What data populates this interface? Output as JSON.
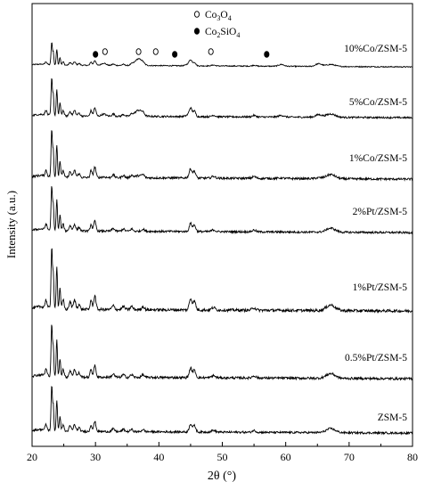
{
  "chart_data": {
    "type": "line",
    "xlabel": "2θ (°)",
    "ylabel": "Intensity (a.u.)",
    "xlim": [
      20,
      80
    ],
    "xticks": [
      20,
      30,
      40,
      50,
      60,
      70,
      80
    ],
    "y_tick_labels": "none",
    "grid": false,
    "legend_position": "top-center",
    "legend": [
      {
        "marker": "open-circle",
        "label_base": "Co",
        "label_sub1": "3",
        "label_mid": "O",
        "label_sub2": "4"
      },
      {
        "marker": "filled-circle",
        "label_base": "Co",
        "label_sub1": "2",
        "label_mid": "SiO",
        "label_sub2": "4"
      }
    ],
    "peak_markers": [
      {
        "x": 30.0,
        "marker": "filled-circle",
        "series": "10%Co/ZSM-5"
      },
      {
        "x": 31.5,
        "marker": "open-circle",
        "series": "10%Co/ZSM-5"
      },
      {
        "x": 36.8,
        "marker": "open-circle",
        "series": "10%Co/ZSM-5"
      },
      {
        "x": 39.5,
        "marker": "open-circle",
        "series": "10%Co/ZSM-5"
      },
      {
        "x": 42.5,
        "marker": "filled-circle",
        "series": "10%Co/ZSM-5"
      },
      {
        "x": 48.2,
        "marker": "open-circle",
        "series": "10%Co/ZSM-5"
      },
      {
        "x": 57.0,
        "marker": "filled-circle",
        "series": "10%Co/ZSM-5"
      }
    ],
    "series": [
      {
        "name": "10%Co/ZSM-5",
        "scale": 0.45,
        "co3o4": 1.0
      },
      {
        "name": "5%Co/ZSM-5",
        "scale": 0.75,
        "co3o4": 0.55
      },
      {
        "name": "1%Co/ZSM-5",
        "scale": 0.95,
        "co3o4": 0.15
      },
      {
        "name": "2%Pt/ZSM-5",
        "scale": 0.9,
        "co3o4": 0.0
      },
      {
        "name": "1%Pt/ZSM-5",
        "scale": 1.25,
        "co3o4": 0.0
      },
      {
        "name": "0.5%Pt/ZSM-5",
        "scale": 1.05,
        "co3o4": 0.0
      },
      {
        "name": "ZSM-5",
        "scale": 0.9,
        "co3o4": 0.0
      }
    ],
    "zsm5_peaks": [
      {
        "x": 23.1,
        "h": 1.0,
        "w": 0.15
      },
      {
        "x": 23.35,
        "h": 0.55,
        "w": 0.12
      },
      {
        "x": 23.9,
        "h": 0.7,
        "w": 0.14
      },
      {
        "x": 24.4,
        "h": 0.35,
        "w": 0.15
      },
      {
        "x": 22.2,
        "h": 0.12,
        "w": 0.2
      },
      {
        "x": 24.9,
        "h": 0.15,
        "w": 0.2
      },
      {
        "x": 26.0,
        "h": 0.12,
        "w": 0.25
      },
      {
        "x": 26.7,
        "h": 0.15,
        "w": 0.25
      },
      {
        "x": 27.4,
        "h": 0.08,
        "w": 0.25
      },
      {
        "x": 29.3,
        "h": 0.15,
        "w": 0.2
      },
      {
        "x": 29.9,
        "h": 0.22,
        "w": 0.25
      },
      {
        "x": 32.8,
        "h": 0.06,
        "w": 0.3
      },
      {
        "x": 34.4,
        "h": 0.05,
        "w": 0.3
      },
      {
        "x": 35.7,
        "h": 0.05,
        "w": 0.3
      },
      {
        "x": 37.5,
        "h": 0.05,
        "w": 0.3
      },
      {
        "x": 45.0,
        "h": 0.18,
        "w": 0.3
      },
      {
        "x": 45.6,
        "h": 0.14,
        "w": 0.3
      },
      {
        "x": 48.6,
        "h": 0.04,
        "w": 0.4
      },
      {
        "x": 55.0,
        "h": 0.04,
        "w": 0.4
      },
      {
        "x": 67.1,
        "h": 0.09,
        "w": 1.0
      }
    ],
    "co3o4_peaks": [
      {
        "x": 31.3,
        "h": 0.1,
        "w": 0.5
      },
      {
        "x": 36.8,
        "h": 0.3,
        "w": 0.8
      },
      {
        "x": 44.8,
        "h": 0.1,
        "w": 0.6
      },
      {
        "x": 59.3,
        "h": 0.08,
        "w": 0.6
      },
      {
        "x": 65.2,
        "h": 0.12,
        "w": 0.7
      }
    ]
  }
}
